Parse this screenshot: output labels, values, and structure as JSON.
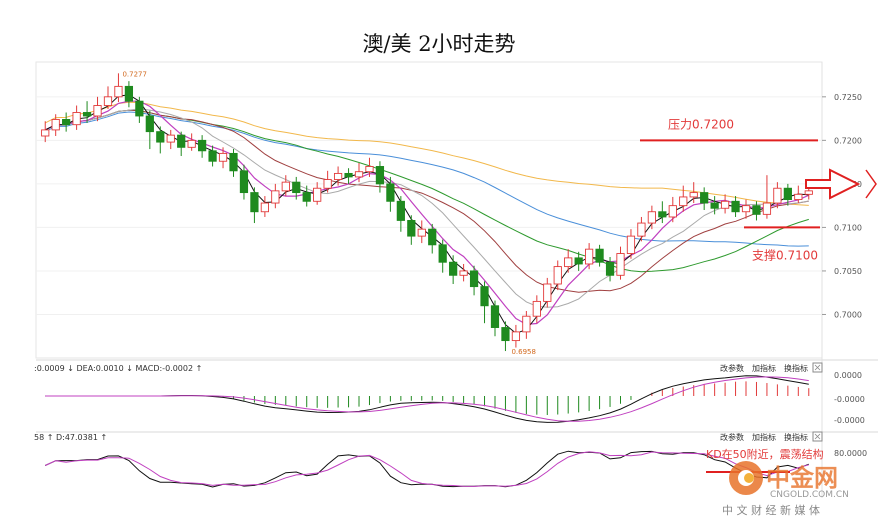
{
  "title": "澳/美 2小时走势",
  "chart_data": [
    {
      "type": "candlestick",
      "y_axis_ticks": [
        "0.7250",
        "0.7200",
        "0.7150",
        "0.7100",
        "0.7050",
        "0.7000"
      ],
      "ylim": [
        0.695,
        0.729
      ],
      "high_label": "0.7277",
      "low_label": "0.6958",
      "annotations": {
        "resistance_label": "压力0.7200",
        "resistance_value": 0.72,
        "support_label": "支撑0.7100",
        "support_value": 0.71
      },
      "candles": [
        [
          0.7205,
          0.7212,
          0.7222,
          0.7198
        ],
        [
          0.7212,
          0.7224,
          0.723,
          0.7205
        ],
        [
          0.7224,
          0.7218,
          0.7232,
          0.721
        ],
        [
          0.7218,
          0.7232,
          0.724,
          0.7212
        ],
        [
          0.7232,
          0.7228,
          0.7245,
          0.722
        ],
        [
          0.7228,
          0.724,
          0.725,
          0.7222
        ],
        [
          0.724,
          0.725,
          0.7262,
          0.7236
        ],
        [
          0.725,
          0.7262,
          0.7277,
          0.7244
        ],
        [
          0.7262,
          0.7245,
          0.7268,
          0.7238
        ],
        [
          0.7245,
          0.7228,
          0.725,
          0.722
        ],
        [
          0.7228,
          0.721,
          0.7234,
          0.719
        ],
        [
          0.721,
          0.7198,
          0.7216,
          0.7185
        ],
        [
          0.7198,
          0.7206,
          0.7212,
          0.719
        ],
        [
          0.7206,
          0.7192,
          0.721,
          0.7182
        ],
        [
          0.7192,
          0.72,
          0.7208,
          0.7188
        ],
        [
          0.72,
          0.7188,
          0.7206,
          0.718
        ],
        [
          0.7188,
          0.7176,
          0.7194,
          0.717
        ],
        [
          0.7176,
          0.7185,
          0.7192,
          0.7168
        ],
        [
          0.7185,
          0.7165,
          0.719,
          0.7158
        ],
        [
          0.7165,
          0.714,
          0.7172,
          0.7132
        ],
        [
          0.714,
          0.7118,
          0.7146,
          0.7105
        ],
        [
          0.7118,
          0.7128,
          0.7136,
          0.7112
        ],
        [
          0.7128,
          0.7142,
          0.715,
          0.7122
        ],
        [
          0.7142,
          0.7152,
          0.716,
          0.7136
        ],
        [
          0.7152,
          0.714,
          0.7158,
          0.7132
        ],
        [
          0.714,
          0.713,
          0.7148,
          0.7124
        ],
        [
          0.713,
          0.7145,
          0.7152,
          0.7126
        ],
        [
          0.7145,
          0.7155,
          0.7165,
          0.714
        ],
        [
          0.7155,
          0.7162,
          0.717,
          0.7148
        ],
        [
          0.7162,
          0.7158,
          0.7168,
          0.715
        ],
        [
          0.7158,
          0.7164,
          0.7174,
          0.7152
        ],
        [
          0.7164,
          0.717,
          0.718,
          0.7158
        ],
        [
          0.717,
          0.715,
          0.7176,
          0.714
        ],
        [
          0.715,
          0.713,
          0.7158,
          0.7118
        ],
        [
          0.713,
          0.7108,
          0.7136,
          0.7095
        ],
        [
          0.7108,
          0.709,
          0.7114,
          0.708
        ],
        [
          0.709,
          0.7098,
          0.7108,
          0.7082
        ],
        [
          0.7098,
          0.708,
          0.7104,
          0.707
        ],
        [
          0.708,
          0.706,
          0.7086,
          0.7048
        ],
        [
          0.706,
          0.7045,
          0.7068,
          0.7035
        ],
        [
          0.7045,
          0.705,
          0.7058,
          0.7038
        ],
        [
          0.705,
          0.7032,
          0.7056,
          0.7022
        ],
        [
          0.7032,
          0.701,
          0.7038,
          0.699
        ],
        [
          0.701,
          0.6985,
          0.7016,
          0.6975
        ],
        [
          0.6985,
          0.697,
          0.6992,
          0.6958
        ],
        [
          0.697,
          0.698,
          0.6988,
          0.6962
        ],
        [
          0.698,
          0.6998,
          0.7004,
          0.6972
        ],
        [
          0.6998,
          0.7015,
          0.7022,
          0.699
        ],
        [
          0.7015,
          0.7035,
          0.7042,
          0.7008
        ],
        [
          0.7035,
          0.7055,
          0.7062,
          0.7028
        ],
        [
          0.7055,
          0.7065,
          0.7075,
          0.7048
        ],
        [
          0.7065,
          0.7058,
          0.7072,
          0.705
        ],
        [
          0.7058,
          0.7075,
          0.7082,
          0.7052
        ],
        [
          0.7075,
          0.706,
          0.708,
          0.7055
        ],
        [
          0.706,
          0.7045,
          0.7066,
          0.7038
        ],
        [
          0.7045,
          0.707,
          0.7078,
          0.704
        ],
        [
          0.707,
          0.709,
          0.7098,
          0.7064
        ],
        [
          0.709,
          0.7105,
          0.7112,
          0.7084
        ],
        [
          0.7105,
          0.7118,
          0.7125,
          0.7098
        ],
        [
          0.7118,
          0.7112,
          0.713,
          0.7105
        ],
        [
          0.7112,
          0.7125,
          0.7135,
          0.7106
        ],
        [
          0.7125,
          0.7135,
          0.7148,
          0.7118
        ],
        [
          0.7135,
          0.714,
          0.7152,
          0.7128
        ],
        [
          0.714,
          0.7128,
          0.7146,
          0.712
        ],
        [
          0.7128,
          0.7122,
          0.7136,
          0.7115
        ],
        [
          0.7122,
          0.713,
          0.7138,
          0.7116
        ],
        [
          0.713,
          0.7118,
          0.7136,
          0.7112
        ],
        [
          0.7118,
          0.7125,
          0.7132,
          0.711
        ],
        [
          0.7125,
          0.7115,
          0.713,
          0.7108
        ],
        [
          0.7115,
          0.7128,
          0.716,
          0.711
        ],
        [
          0.7128,
          0.7145,
          0.7152,
          0.7122
        ],
        [
          0.7145,
          0.7132,
          0.715,
          0.7125
        ],
        [
          0.7132,
          0.7138,
          0.7148,
          0.7128
        ],
        [
          0.7138,
          0.7142,
          0.715,
          0.7132
        ]
      ]
    },
    {
      "type": "line",
      "panel": "MACD",
      "header": ":0.0009 ↓ DEA:0.0010 ↓ MACD:-0.0002 ↑",
      "y_axis_ticks": [
        "0.0000",
        "-0.0000",
        "-0.0000"
      ],
      "buttons": [
        "改参数",
        "加指标",
        "换指标"
      ]
    },
    {
      "type": "line",
      "panel": "KDJ",
      "header": "58 ↑ D:47.0381 ↑",
      "y_axis_ticks": [
        "80.0000"
      ],
      "annotation": "KD在50附近，震荡结构",
      "buttons": [
        "改参数",
        "加指标",
        "换指标"
      ]
    }
  ],
  "watermark": {
    "logo_text": "中金网",
    "site": "CNGOLD.COM.CN",
    "tagline": "中 文 财 经 新 媒 体"
  }
}
